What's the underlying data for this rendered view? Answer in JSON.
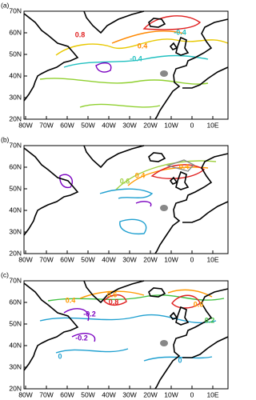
{
  "panels": [
    {
      "label": "(a)",
      "contour_labels": [
        "0.8",
        "-0.4",
        "-0.4",
        "0.4"
      ]
    },
    {
      "label": "(b)",
      "contour_labels": [
        "0.6",
        "0.4",
        "0.4"
      ]
    },
    {
      "label": "(c)",
      "contour_labels": [
        "0.4",
        "0.6",
        "0.8",
        "-0.2",
        "-0.2",
        "0",
        "0.6",
        "0.2",
        "0"
      ]
    }
  ],
  "lat_labels": [
    "20N",
    "30N",
    "40N",
    "50N",
    "60N",
    "70N"
  ],
  "lon_labels": [
    "80W",
    "70W",
    "60W",
    "50W",
    "40W",
    "30W",
    "20W",
    "10W",
    "0",
    "10E"
  ]
}
